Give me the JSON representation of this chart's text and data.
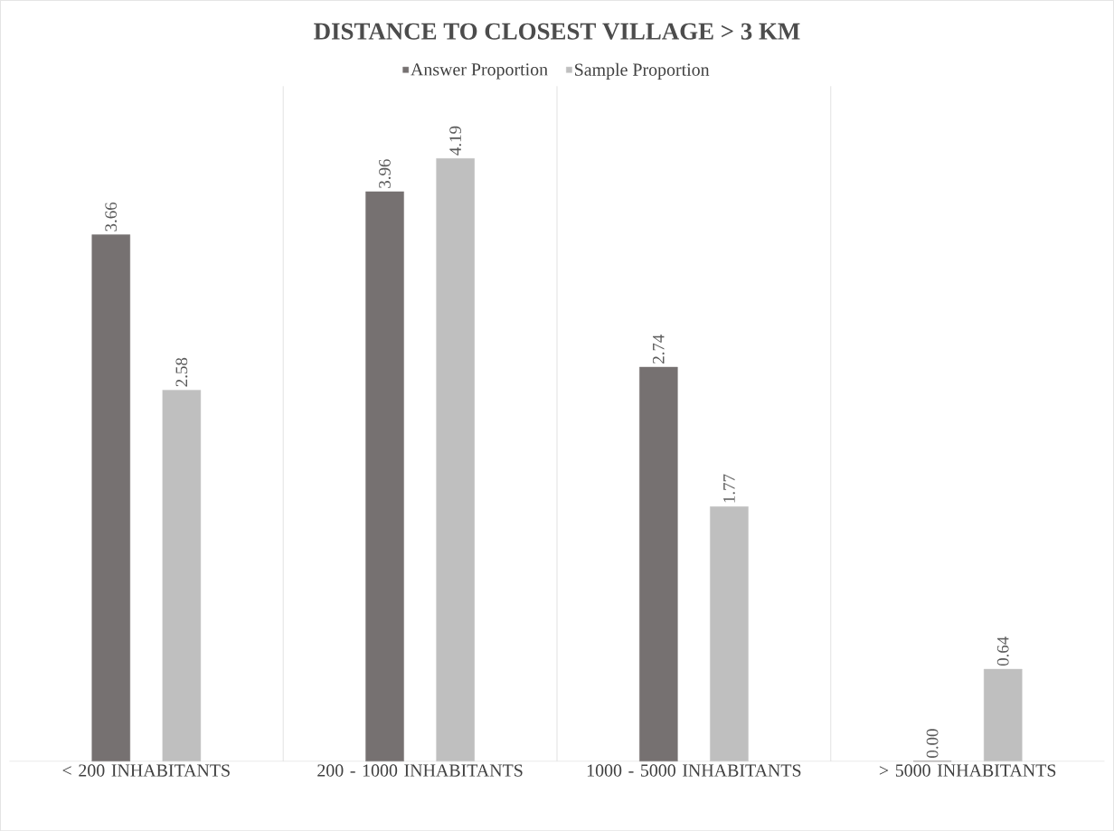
{
  "chart_data": {
    "type": "bar",
    "title": "DISTANCE TO CLOSEST VILLAGE > 3 KM",
    "categories": [
      "< 200 INHABITANTS",
      "200 - 1000 INHABITANTS",
      "1000 - 5000 INHABITANTS",
      "> 5000 INHABITANTS"
    ],
    "series": [
      {
        "name": "Answer Proportion",
        "color": "#767171",
        "values": [
          3.66,
          3.96,
          2.74,
          0.0
        ],
        "value_labels": [
          "3.66",
          "3.96",
          "2.74",
          "0.00"
        ]
      },
      {
        "name": "Sample Proportion",
        "color": "#bfbfbf",
        "values": [
          2.58,
          4.19,
          1.77,
          0.64
        ],
        "value_labels": [
          "2.58",
          "4.19",
          "1.77",
          "0.64"
        ]
      }
    ],
    "grid": "x",
    "legend": "top"
  }
}
